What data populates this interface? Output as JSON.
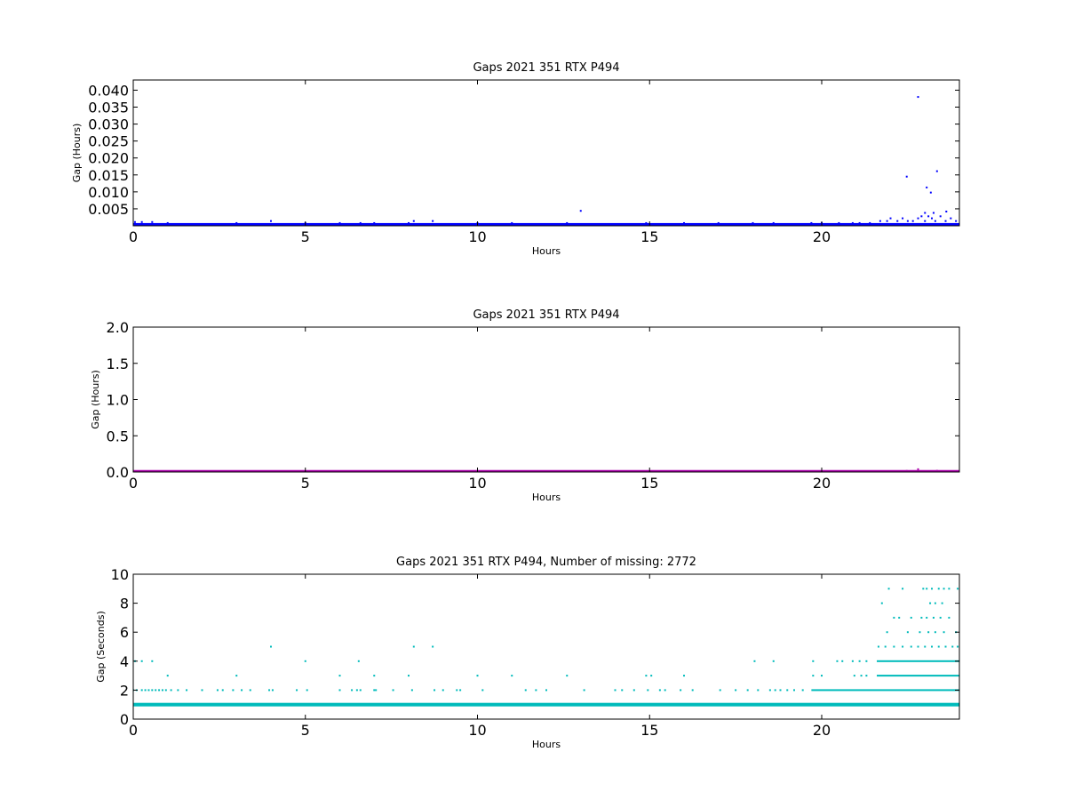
{
  "chart_data": [
    {
      "type": "scatter",
      "title": "Gaps 2021 351 RTX  P494",
      "xlabel": "Hours",
      "ylabel": "Gap (Hours)",
      "xlim": [
        0,
        24
      ],
      "ylim": [
        0,
        0.043
      ],
      "x_ticks": [
        "0",
        "5",
        "10",
        "15",
        "20"
      ],
      "y_ticks": [
        "0.005",
        "0.010",
        "0.015",
        "0.020",
        "0.025",
        "0.030",
        "0.035",
        "0.040"
      ],
      "grid": false,
      "color": "#0000ff",
      "baseline_band": {
        "x_range": [
          0,
          24
        ],
        "value": 0.00028
      },
      "points": [
        [
          0.05,
          0.0011
        ],
        [
          0.25,
          0.0011
        ],
        [
          0.55,
          0.0011
        ],
        [
          1.0,
          0.0008
        ],
        [
          3.0,
          0.0008
        ],
        [
          4.0,
          0.0014
        ],
        [
          5.0,
          0.0008
        ],
        [
          6.0,
          0.0008
        ],
        [
          6.6,
          0.0008
        ],
        [
          7.0,
          0.0008
        ],
        [
          8.0,
          0.0008
        ],
        [
          8.15,
          0.0014
        ],
        [
          8.7,
          0.0014
        ],
        [
          10.0,
          0.0008
        ],
        [
          11.0,
          0.0008
        ],
        [
          12.6,
          0.0008
        ],
        [
          13.0,
          0.0044
        ],
        [
          14.9,
          0.0008
        ],
        [
          16.0,
          0.0008
        ],
        [
          17.0,
          0.0008
        ],
        [
          18.0,
          0.0008
        ],
        [
          18.6,
          0.0008
        ],
        [
          19.7,
          0.0008
        ],
        [
          20.0,
          0.0008
        ],
        [
          20.5,
          0.0008
        ],
        [
          20.9,
          0.0008
        ],
        [
          21.1,
          0.0008
        ],
        [
          21.4,
          0.0008
        ],
        [
          21.7,
          0.0014
        ],
        [
          21.9,
          0.0014
        ],
        [
          22.0,
          0.0022
        ],
        [
          22.2,
          0.0014
        ],
        [
          22.35,
          0.0022
        ],
        [
          22.5,
          0.0014
        ],
        [
          22.65,
          0.0014
        ],
        [
          22.8,
          0.0022
        ],
        [
          22.9,
          0.0028
        ],
        [
          23.0,
          0.0014
        ],
        [
          23.1,
          0.0028
        ],
        [
          23.2,
          0.0022
        ],
        [
          23.3,
          0.0014
        ],
        [
          23.45,
          0.0028
        ],
        [
          23.6,
          0.0014
        ],
        [
          23.75,
          0.0022
        ],
        [
          23.9,
          0.0014
        ],
        [
          22.47,
          0.0145
        ],
        [
          22.8,
          0.038
        ],
        [
          23.05,
          0.0113
        ],
        [
          23.17,
          0.0098
        ],
        [
          23.35,
          0.0161
        ],
        [
          23.0,
          0.0038
        ],
        [
          23.25,
          0.0038
        ],
        [
          23.62,
          0.0042
        ]
      ]
    },
    {
      "type": "scatter",
      "title": "Gaps 2021 351 RTX  P494",
      "xlabel": "Hours",
      "ylabel": "Gap (Hours)",
      "xlim": [
        0,
        24
      ],
      "ylim": [
        0,
        2.0
      ],
      "x_ticks": [
        "0",
        "5",
        "10",
        "15",
        "20"
      ],
      "y_ticks": [
        "0.0",
        "0.5",
        "1.0",
        "1.5",
        "2.0"
      ],
      "grid": false,
      "color": "#aa00aa",
      "baseline_band": {
        "x_range": [
          0,
          24
        ],
        "value": 0.003
      },
      "points": [
        [
          22.8,
          0.038
        ],
        [
          23.35,
          0.016
        ],
        [
          22.47,
          0.0145
        ],
        [
          23.05,
          0.011
        ]
      ]
    },
    {
      "type": "scatter",
      "title": "Gaps 2021 351 RTX  P494, Number of missing: 2772",
      "xlabel": "Hours",
      "ylabel": "Gap (Seconds)",
      "xlim": [
        0,
        24
      ],
      "ylim": [
        0,
        10
      ],
      "x_ticks": [
        "0",
        "5",
        "10",
        "15",
        "20"
      ],
      "y_ticks": [
        "0",
        "2",
        "4",
        "6",
        "8",
        "10"
      ],
      "grid": false,
      "color": "#00bbbb",
      "baseline_band": {
        "x_range": [
          0,
          24
        ],
        "value": 1
      },
      "level_2_band": {
        "x_range": [
          19.7,
          24
        ],
        "value": 2
      },
      "level_3_band": {
        "x_range": [
          21.6,
          24
        ],
        "value": 3
      },
      "level_4_band": {
        "x_range": [
          21.6,
          24
        ],
        "value": 4
      },
      "points": [
        [
          0.0,
          2
        ],
        [
          0.1,
          2
        ],
        [
          0.25,
          2
        ],
        [
          0.35,
          2
        ],
        [
          0.45,
          2
        ],
        [
          0.55,
          2
        ],
        [
          0.65,
          2
        ],
        [
          0.75,
          2
        ],
        [
          0.85,
          2
        ],
        [
          0.95,
          2
        ],
        [
          1.1,
          2
        ],
        [
          1.3,
          2
        ],
        [
          1.55,
          2
        ],
        [
          2.0,
          2
        ],
        [
          2.45,
          2
        ],
        [
          2.6,
          2
        ],
        [
          2.9,
          2
        ],
        [
          3.15,
          2
        ],
        [
          3.4,
          2
        ],
        [
          3.95,
          2
        ],
        [
          4.05,
          2
        ],
        [
          4.75,
          2
        ],
        [
          5.05,
          2
        ],
        [
          6.0,
          2
        ],
        [
          6.35,
          2
        ],
        [
          6.5,
          2
        ],
        [
          6.6,
          2
        ],
        [
          7.0,
          2
        ],
        [
          7.05,
          2
        ],
        [
          7.55,
          2
        ],
        [
          8.1,
          2
        ],
        [
          8.75,
          2
        ],
        [
          9.0,
          2
        ],
        [
          9.4,
          2
        ],
        [
          9.5,
          2
        ],
        [
          10.15,
          2
        ],
        [
          11.4,
          2
        ],
        [
          11.7,
          2
        ],
        [
          12.0,
          2
        ],
        [
          13.1,
          2
        ],
        [
          14.0,
          2
        ],
        [
          14.2,
          2
        ],
        [
          14.55,
          2
        ],
        [
          14.95,
          2
        ],
        [
          15.3,
          2
        ],
        [
          15.45,
          2
        ],
        [
          15.9,
          2
        ],
        [
          16.25,
          2
        ],
        [
          17.05,
          2
        ],
        [
          17.5,
          2
        ],
        [
          17.85,
          2
        ],
        [
          18.15,
          2
        ],
        [
          18.5,
          2
        ],
        [
          18.65,
          2
        ],
        [
          18.8,
          2
        ],
        [
          19.0,
          2
        ],
        [
          19.2,
          2
        ],
        [
          19.45,
          2
        ],
        [
          0.05,
          4
        ],
        [
          0.25,
          4
        ],
        [
          0.55,
          4
        ],
        [
          5.0,
          4
        ],
        [
          6.55,
          4
        ],
        [
          18.05,
          4
        ],
        [
          18.6,
          4
        ],
        [
          19.75,
          4
        ],
        [
          20.45,
          4
        ],
        [
          20.6,
          4
        ],
        [
          20.9,
          4
        ],
        [
          21.1,
          4
        ],
        [
          21.3,
          4
        ],
        [
          1.0,
          3
        ],
        [
          3.0,
          3
        ],
        [
          6.0,
          3
        ],
        [
          7.0,
          3
        ],
        [
          8.0,
          3
        ],
        [
          10.0,
          3
        ],
        [
          11.0,
          3
        ],
        [
          12.6,
          3
        ],
        [
          14.9,
          3
        ],
        [
          15.05,
          3
        ],
        [
          16.0,
          3
        ],
        [
          19.75,
          3
        ],
        [
          20.0,
          3
        ],
        [
          20.95,
          3
        ],
        [
          21.15,
          3
        ],
        [
          21.3,
          3
        ],
        [
          4.0,
          5
        ],
        [
          8.15,
          5
        ],
        [
          8.7,
          5
        ],
        [
          21.65,
          5
        ],
        [
          21.85,
          5
        ],
        [
          22.1,
          5
        ],
        [
          22.35,
          5
        ],
        [
          22.6,
          5
        ],
        [
          22.8,
          5
        ],
        [
          23.0,
          5
        ],
        [
          23.2,
          5
        ],
        [
          23.4,
          5
        ],
        [
          23.6,
          5
        ],
        [
          23.8,
          5
        ],
        [
          23.95,
          5
        ],
        [
          21.9,
          6
        ],
        [
          22.5,
          6
        ],
        [
          22.85,
          6
        ],
        [
          23.1,
          6
        ],
        [
          23.3,
          6
        ],
        [
          23.55,
          6
        ],
        [
          23.9,
          6
        ],
        [
          22.1,
          7
        ],
        [
          22.25,
          7
        ],
        [
          22.6,
          7
        ],
        [
          22.9,
          7
        ],
        [
          23.05,
          7
        ],
        [
          23.25,
          7
        ],
        [
          23.45,
          7
        ],
        [
          23.7,
          7
        ],
        [
          21.75,
          8
        ],
        [
          23.15,
          8
        ],
        [
          23.3,
          8
        ],
        [
          23.5,
          8
        ],
        [
          21.95,
          9
        ],
        [
          22.35,
          9
        ],
        [
          22.95,
          9
        ],
        [
          23.05,
          9
        ],
        [
          23.2,
          9
        ],
        [
          23.4,
          9
        ],
        [
          23.55,
          9
        ],
        [
          23.7,
          9
        ],
        [
          23.95,
          9
        ]
      ]
    }
  ]
}
